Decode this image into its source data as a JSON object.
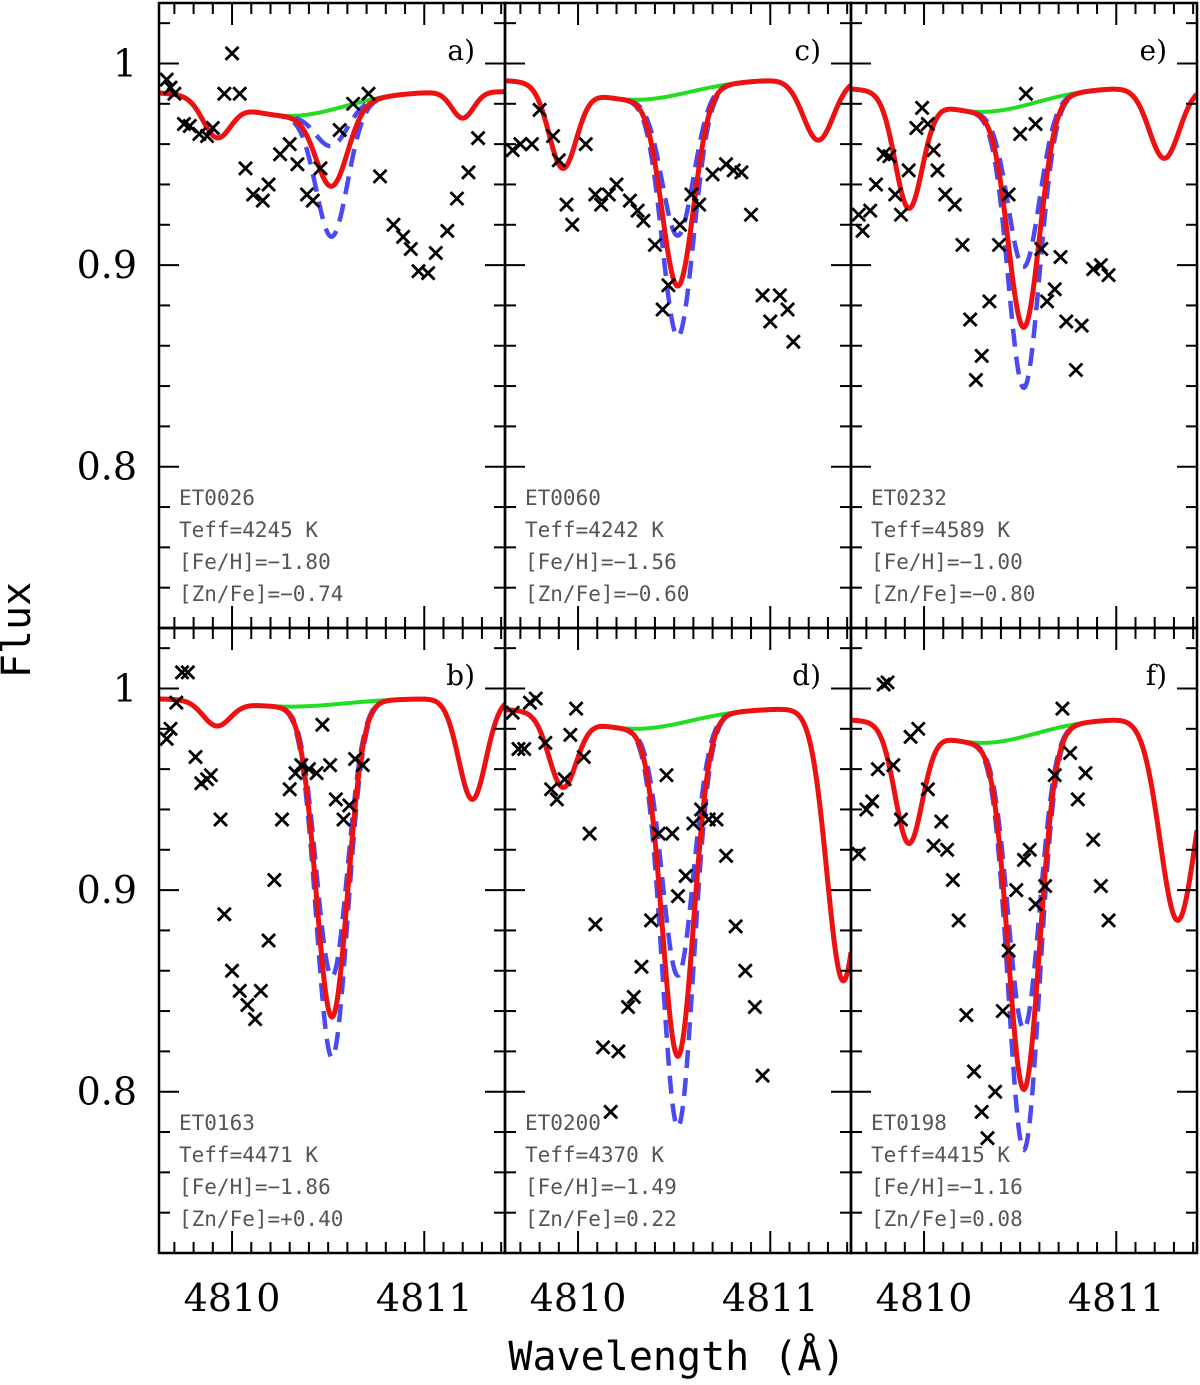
{
  "chart_data": {
    "type": "line",
    "xlabel": "Wavelength (Å)",
    "ylabel": "Flux",
    "xlim": [
      4809.62,
      4811.42
    ],
    "ylim": [
      0.72,
      1.03
    ],
    "x_ticks": [
      4810,
      4811
    ],
    "y_ticks": [
      0.8,
      0.9,
      1
    ],
    "y_tick_labels": [
      "0.8",
      "0.9",
      "1"
    ],
    "colors": {
      "no_zn": "#22dd22",
      "best_fit": "#ee1111",
      "bounds": "#4a4af0",
      "observed": "#000000"
    },
    "series_names": [
      "synthesis without Zn",
      "best fit",
      "[Zn/Fe] ± 0.2",
      "observed"
    ],
    "panels": [
      {
        "id": "a",
        "label": "a)",
        "star": "ET0026",
        "teff": "Teff=4245 K",
        "feh": "[Fe/H]=−1.80",
        "znfe": "[Zn/Fe]=−0.74",
        "continuum": 0.986,
        "left_wing": 0.018,
        "rdip": {
          "d": 0.013,
          "x": 4811.2,
          "w": 0.08
        },
        "zn_depth": 0.038,
        "zn_high": 0.063,
        "zn_low": 0.018,
        "green_depth": 0.012,
        "observed": [
          [
            4809.66,
            0.992
          ],
          [
            4809.68,
            0.988
          ],
          [
            4809.7,
            0.985
          ],
          [
            4809.75,
            0.97
          ],
          [
            4809.78,
            0.969
          ],
          [
            4809.83,
            0.965
          ],
          [
            4809.87,
            0.964
          ],
          [
            4809.9,
            0.968
          ],
          [
            4809.96,
            0.985
          ],
          [
            4810.0,
            1.005
          ],
          [
            4810.04,
            0.985
          ],
          [
            4810.07,
            0.948
          ],
          [
            4810.11,
            0.935
          ],
          [
            4810.16,
            0.932
          ],
          [
            4810.19,
            0.94
          ],
          [
            4810.25,
            0.955
          ],
          [
            4810.3,
            0.96
          ],
          [
            4810.34,
            0.95
          ],
          [
            4810.39,
            0.935
          ],
          [
            4810.42,
            0.932
          ],
          [
            4810.46,
            0.948
          ],
          [
            4810.56,
            0.967
          ],
          [
            4810.63,
            0.98
          ],
          [
            4810.71,
            0.985
          ],
          [
            4810.77,
            0.944
          ],
          [
            4810.84,
            0.92
          ],
          [
            4810.89,
            0.914
          ],
          [
            4810.93,
            0.908
          ],
          [
            4810.97,
            0.897
          ],
          [
            4811.02,
            0.896
          ],
          [
            4811.06,
            0.906
          ],
          [
            4811.12,
            0.917
          ],
          [
            4811.17,
            0.933
          ],
          [
            4811.23,
            0.946
          ],
          [
            4811.28,
            0.963
          ]
        ]
      },
      {
        "id": "c",
        "label": "c)",
        "star": "ET0060",
        "teff": "Teff=4242 K",
        "feh": "[Fe/H]=−1.56",
        "znfe": "[Zn/Fe]=−0.60",
        "continuum": 0.992,
        "left_wing": 0.04,
        "rdip": {
          "d": 0.03,
          "x": 4811.25,
          "w": 0.11
        },
        "zn_depth": 0.095,
        "zn_high": 0.12,
        "zn_low": 0.07,
        "green_depth": 0.01,
        "observed": [
          [
            4809.66,
            0.957
          ],
          [
            4809.7,
            0.96
          ],
          [
            4809.76,
            0.96
          ],
          [
            4809.8,
            0.977
          ],
          [
            4809.87,
            0.964
          ],
          [
            4809.9,
            0.952
          ],
          [
            4809.94,
            0.93
          ],
          [
            4809.97,
            0.92
          ],
          [
            4810.04,
            0.96
          ],
          [
            4810.09,
            0.935
          ],
          [
            4810.12,
            0.93
          ],
          [
            4810.16,
            0.935
          ],
          [
            4810.2,
            0.94
          ],
          [
            4810.27,
            0.932
          ],
          [
            4810.31,
            0.927
          ],
          [
            4810.34,
            0.922
          ],
          [
            4810.4,
            0.91
          ],
          [
            4810.44,
            0.878
          ],
          [
            4810.47,
            0.89
          ],
          [
            4810.53,
            0.92
          ],
          [
            4810.59,
            0.935
          ],
          [
            4810.63,
            0.93
          ],
          [
            4810.7,
            0.945
          ],
          [
            4810.77,
            0.95
          ],
          [
            4810.81,
            0.947
          ],
          [
            4810.85,
            0.946
          ],
          [
            4810.9,
            0.925
          ],
          [
            4810.96,
            0.885
          ],
          [
            4811.0,
            0.872
          ],
          [
            4811.05,
            0.885
          ],
          [
            4811.09,
            0.878
          ],
          [
            4811.12,
            0.862
          ]
        ]
      },
      {
        "id": "e",
        "label": "e)",
        "star": "ET0232",
        "teff": "Teff=4589 K",
        "feh": "[Fe/H]=−1.00",
        "znfe": "[Zn/Fe]=−0.80",
        "continuum": 0.988,
        "left_wing": 0.055,
        "rdip": {
          "d": 0.035,
          "x": 4811.25,
          "w": 0.11
        },
        "zn_depth": 0.11,
        "zn_high": 0.14,
        "zn_low": 0.08,
        "green_depth": 0.012,
        "observed": [
          [
            4809.66,
            0.925
          ],
          [
            4809.68,
            0.917
          ],
          [
            4809.72,
            0.927
          ],
          [
            4809.75,
            0.94
          ],
          [
            4809.79,
            0.955
          ],
          [
            4809.82,
            0.954
          ],
          [
            4809.85,
            0.935
          ],
          [
            4809.88,
            0.925
          ],
          [
            4809.92,
            0.947
          ],
          [
            4809.96,
            0.968
          ],
          [
            4809.99,
            0.978
          ],
          [
            4810.02,
            0.97
          ],
          [
            4810.05,
            0.957
          ],
          [
            4810.07,
            0.947
          ],
          [
            4810.11,
            0.935
          ],
          [
            4810.16,
            0.93
          ],
          [
            4810.2,
            0.91
          ],
          [
            4810.24,
            0.873
          ],
          [
            4810.27,
            0.843
          ],
          [
            4810.3,
            0.855
          ],
          [
            4810.34,
            0.882
          ],
          [
            4810.39,
            0.91
          ],
          [
            4810.44,
            0.935
          ],
          [
            4810.5,
            0.965
          ],
          [
            4810.53,
            0.985
          ],
          [
            4810.58,
            0.97
          ],
          [
            4810.61,
            0.908
          ],
          [
            4810.64,
            0.882
          ],
          [
            4810.68,
            0.888
          ],
          [
            4810.71,
            0.904
          ],
          [
            4810.74,
            0.872
          ],
          [
            4810.79,
            0.848
          ],
          [
            4810.82,
            0.87
          ],
          [
            4810.88,
            0.898
          ],
          [
            4810.92,
            0.9
          ],
          [
            4810.96,
            0.895
          ]
        ]
      },
      {
        "id": "b",
        "label": "b)",
        "star": "ET0163",
        "teff": "Teff=4471 K",
        "feh": "[Fe/H]=−1.86",
        "znfe": "[Zn/Fe]=+0.40",
        "continuum": 0.995,
        "left_wing": 0.012,
        "rdip": {
          "d": 0.05,
          "x": 4811.25,
          "w": 0.1
        },
        "zn_depth": 0.155,
        "zn_high": 0.175,
        "zn_low": 0.135,
        "green_depth": 0.004,
        "observed": [
          [
            4809.66,
            0.975
          ],
          [
            4809.68,
            0.98
          ],
          [
            4809.71,
            0.993
          ],
          [
            4809.74,
            1.008
          ],
          [
            4809.77,
            1.008
          ],
          [
            4809.81,
            0.966
          ],
          [
            4809.84,
            0.953
          ],
          [
            4809.87,
            0.955
          ],
          [
            4809.89,
            0.957
          ],
          [
            4809.94,
            0.935
          ],
          [
            4809.96,
            0.888
          ],
          [
            4810.0,
            0.86
          ],
          [
            4810.04,
            0.85
          ],
          [
            4810.08,
            0.843
          ],
          [
            4810.12,
            0.836
          ],
          [
            4810.15,
            0.85
          ],
          [
            4810.19,
            0.875
          ],
          [
            4810.22,
            0.905
          ],
          [
            4810.26,
            0.935
          ],
          [
            4810.3,
            0.95
          ],
          [
            4810.33,
            0.958
          ],
          [
            4810.36,
            0.962
          ],
          [
            4810.4,
            0.96
          ],
          [
            4810.44,
            0.958
          ],
          [
            4810.47,
            0.982
          ],
          [
            4810.51,
            0.962
          ],
          [
            4810.54,
            0.945
          ],
          [
            4810.58,
            0.935
          ],
          [
            4810.61,
            0.942
          ],
          [
            4810.64,
            0.965
          ],
          [
            4810.68,
            0.962
          ]
        ]
      },
      {
        "id": "d",
        "label": "d)",
        "star": "ET0200",
        "teff": "Teff=4370 K",
        "feh": "[Fe/H]=−1.49",
        "znfe": "[Zn/Fe]=0.22",
        "continuum": 0.99,
        "left_wing": 0.035,
        "rdip": {
          "d": 0.135,
          "x": 4811.38,
          "w": 0.12
        },
        "zn_depth": 0.165,
        "zn_high": 0.2,
        "zn_low": 0.125,
        "green_depth": 0.01,
        "observed": [
          [
            4809.66,
            0.988
          ],
          [
            4809.69,
            0.97
          ],
          [
            4809.72,
            0.97
          ],
          [
            4809.75,
            0.993
          ],
          [
            4809.78,
            0.995
          ],
          [
            4809.83,
            0.973
          ],
          [
            4809.86,
            0.95
          ],
          [
            4809.89,
            0.945
          ],
          [
            4809.93,
            0.955
          ],
          [
            4809.96,
            0.977
          ],
          [
            4809.99,
            0.99
          ],
          [
            4810.03,
            0.966
          ],
          [
            4810.06,
            0.928
          ],
          [
            4810.09,
            0.883
          ],
          [
            4810.13,
            0.822
          ],
          [
            4810.17,
            0.79
          ],
          [
            4810.21,
            0.82
          ],
          [
            4810.26,
            0.842
          ],
          [
            4810.29,
            0.847
          ],
          [
            4810.33,
            0.862
          ],
          [
            4810.38,
            0.885
          ],
          [
            4810.42,
            0.928
          ],
          [
            4810.46,
            0.957
          ],
          [
            4810.49,
            0.928
          ],
          [
            4810.52,
            0.897
          ],
          [
            4810.56,
            0.907
          ],
          [
            4810.6,
            0.933
          ],
          [
            4810.64,
            0.94
          ],
          [
            4810.68,
            0.935
          ],
          [
            4810.72,
            0.935
          ],
          [
            4810.77,
            0.917
          ],
          [
            4810.82,
            0.882
          ],
          [
            4810.87,
            0.86
          ],
          [
            4810.92,
            0.842
          ],
          [
            4810.96,
            0.808
          ]
        ]
      },
      {
        "id": "f",
        "label": "f)",
        "star": "ET0198",
        "teff": "Teff=4415 K",
        "feh": "[Fe/H]=−1.16",
        "znfe": "[Zn/Fe]=0.08",
        "continuum": 0.985,
        "left_wing": 0.057,
        "rdip": {
          "d": 0.1,
          "x": 4811.32,
          "w": 0.13
        },
        "zn_depth": 0.175,
        "zn_high": 0.205,
        "zn_low": 0.145,
        "green_depth": 0.012,
        "observed": [
          [
            4809.66,
            0.918
          ],
          [
            4809.7,
            0.94
          ],
          [
            4809.73,
            0.944
          ],
          [
            4809.76,
            0.96
          ],
          [
            4809.79,
            1.002
          ],
          [
            4809.81,
            1.003
          ],
          [
            4809.84,
            0.962
          ],
          [
            4809.88,
            0.935
          ],
          [
            4809.93,
            0.976
          ],
          [
            4809.97,
            0.98
          ],
          [
            4810.02,
            0.95
          ],
          [
            4810.05,
            0.922
          ],
          [
            4810.09,
            0.934
          ],
          [
            4810.12,
            0.92
          ],
          [
            4810.15,
            0.905
          ],
          [
            4810.18,
            0.885
          ],
          [
            4810.22,
            0.838
          ],
          [
            4810.26,
            0.81
          ],
          [
            4810.3,
            0.79
          ],
          [
            4810.33,
            0.777
          ],
          [
            4810.37,
            0.8
          ],
          [
            4810.41,
            0.84
          ],
          [
            4810.44,
            0.87
          ],
          [
            4810.48,
            0.9
          ],
          [
            4810.52,
            0.915
          ],
          [
            4810.55,
            0.92
          ],
          [
            4810.58,
            0.893
          ],
          [
            4810.63,
            0.902
          ],
          [
            4810.68,
            0.957
          ],
          [
            4810.72,
            0.99
          ],
          [
            4810.76,
            0.968
          ],
          [
            4810.8,
            0.945
          ],
          [
            4810.84,
            0.958
          ],
          [
            4810.88,
            0.925
          ],
          [
            4810.92,
            0.902
          ],
          [
            4810.96,
            0.885
          ]
        ]
      }
    ]
  }
}
